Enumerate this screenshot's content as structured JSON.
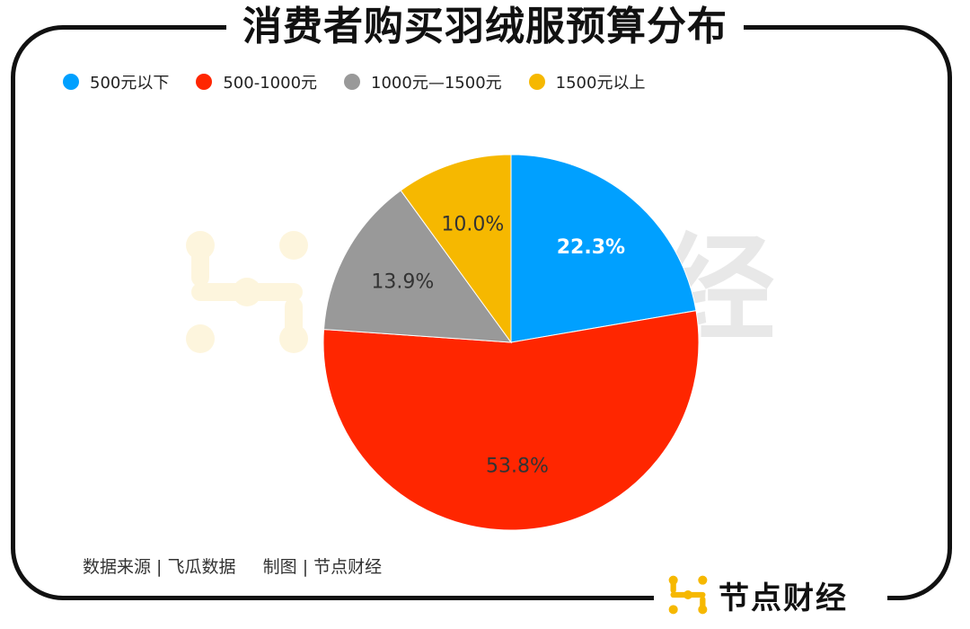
{
  "title": "消费者购买羽绒服预算分布",
  "chart_data": {
    "type": "pie",
    "title": "消费者购买羽绒服预算分布",
    "legend_position": "top-left",
    "start_angle_deg": 0,
    "direction": "clockwise",
    "slices": [
      {
        "label": "500元以下",
        "value": 22.3,
        "display": "22.3%",
        "color": "#00a0ff",
        "label_color": "#ffffff"
      },
      {
        "label": "500-1000元",
        "value": 53.8,
        "display": "53.8%",
        "color": "#ff2600",
        "label_color": "#333333"
      },
      {
        "label": "1000元—1500元",
        "value": 13.9,
        "display": "13.9%",
        "color": "#999999",
        "label_color": "#333333"
      },
      {
        "label": "1500元以上",
        "value": 10.0,
        "display": "10.0%",
        "color": "#f6b800",
        "label_color": "#333333"
      }
    ]
  },
  "source_text": "数据来源 | 飞瓜数据     制图 | 节点财经",
  "watermark": {
    "text": "经",
    "icon": "brand-logo-icon"
  },
  "brand": {
    "name": "节点财经",
    "icon": "brand-logo-icon",
    "color": "#f6b800"
  }
}
